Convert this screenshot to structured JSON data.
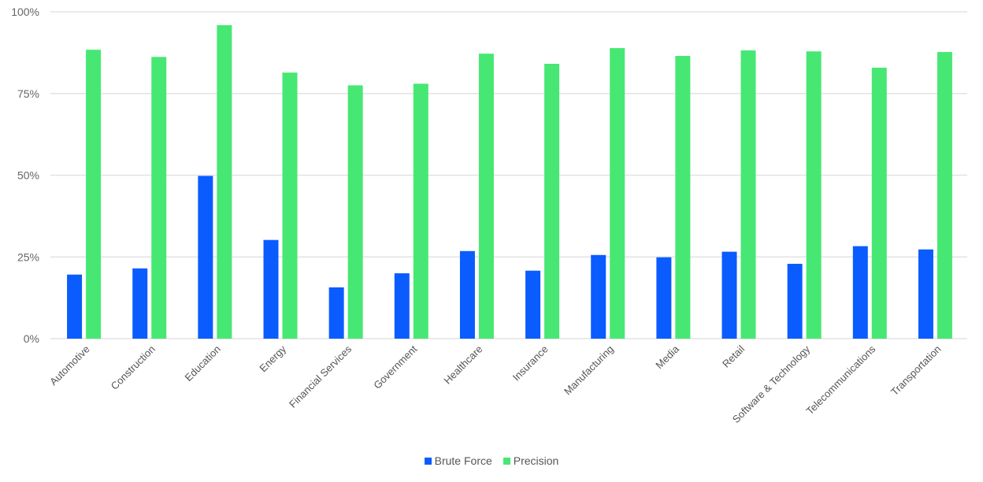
{
  "chart_data": {
    "type": "bar",
    "categories": [
      "Automotive",
      "Construction",
      "Education",
      "Energy",
      "Financial Services",
      "Government",
      "Healthcare",
      "Insurance",
      "Manufacturing",
      "Media",
      "Retail",
      "Software & Technology",
      "Telecommunications",
      "Transportation"
    ],
    "series": [
      {
        "name": "Brute Force",
        "color": "#0a5cff",
        "values": [
          19.6,
          21.5,
          49.8,
          30.2,
          15.7,
          20.0,
          26.8,
          20.8,
          25.6,
          24.9,
          26.6,
          22.9,
          28.3,
          27.3
        ]
      },
      {
        "name": "Precision",
        "color": "#46e873",
        "values": [
          88.4,
          86.2,
          95.9,
          81.4,
          77.5,
          78.0,
          87.2,
          84.1,
          88.9,
          86.5,
          88.2,
          87.9,
          82.9,
          87.7
        ]
      }
    ],
    "title": "",
    "xlabel": "",
    "ylabel": "",
    "ylim": [
      0,
      100
    ],
    "yticks": [
      "0%",
      "25%",
      "50%",
      "75%",
      "100%"
    ],
    "grid": true,
    "legend_position": "bottom"
  }
}
